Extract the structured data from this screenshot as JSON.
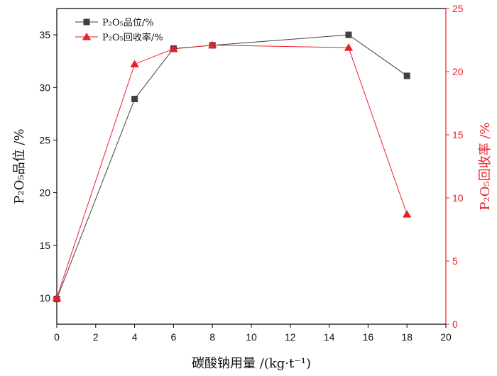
{
  "chart_data": {
    "type": "line",
    "xlabel": "碳酸钠用量 /(kg·t⁻¹)",
    "ylabel_left": "P₂O₅品位 /%",
    "ylabel_right": "P₂O₅回收率 /%",
    "xlim": [
      0,
      20
    ],
    "ylim_left": [
      7.5,
      37.5
    ],
    "ylim_right": [
      0,
      25
    ],
    "x_ticks": [
      0,
      2,
      4,
      6,
      8,
      10,
      12,
      14,
      16,
      18,
      20
    ],
    "y_left_ticks": [
      10,
      15,
      20,
      25,
      30,
      35
    ],
    "y_right_ticks": [
      0,
      5,
      10,
      15,
      20,
      25
    ],
    "legend_position": "top-left",
    "grid": false,
    "series": [
      {
        "name": "P₂O₅品位/%",
        "axis": "left",
        "marker": "square",
        "color": "#404040",
        "x": [
          0,
          4,
          6,
          8,
          15,
          18
        ],
        "y": [
          9.9,
          28.9,
          33.7,
          34.0,
          35.0,
          31.1
        ]
      },
      {
        "name": "P₂O₅回收率/%",
        "axis": "right",
        "marker": "triangle",
        "color": "#e8202a",
        "x": [
          0,
          4,
          6,
          8,
          15,
          18
        ],
        "y": [
          2.1,
          20.6,
          21.8,
          22.1,
          21.9,
          8.7
        ]
      }
    ]
  }
}
